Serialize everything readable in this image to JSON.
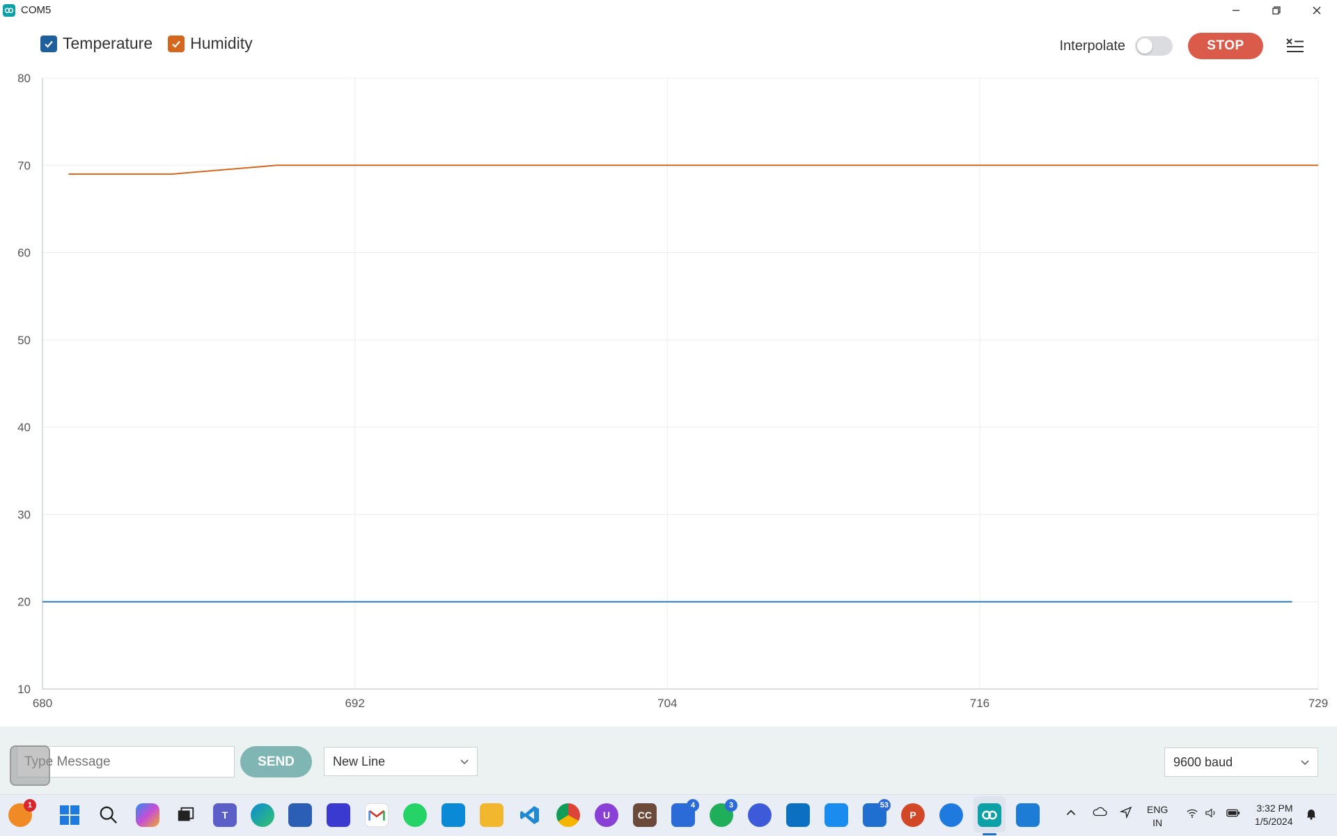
{
  "window": {
    "title": "COM5"
  },
  "header": {
    "legend": [
      {
        "label": "Temperature",
        "color": "#1f5f9e",
        "checked": true
      },
      {
        "label": "Humidity",
        "color": "#d4661e",
        "checked": true
      }
    ],
    "interpolate_label": "Interpolate",
    "interpolate_on": false,
    "stop_label": "STOP"
  },
  "chart_data": {
    "type": "line",
    "x_range": [
      680,
      729
    ],
    "xlim": [
      680,
      729
    ],
    "ylim": [
      10,
      80
    ],
    "xticks": [
      680,
      692,
      704,
      716,
      729
    ],
    "yticks": [
      10,
      20,
      30,
      40,
      50,
      60,
      70,
      80
    ],
    "grid": true,
    "series": [
      {
        "name": "Temperature",
        "color": "#2b7bb9",
        "x": [
          680,
          728
        ],
        "y": [
          20,
          20
        ]
      },
      {
        "name": "Humidity",
        "color": "#d4661e",
        "x": [
          681,
          685,
          689,
          729
        ],
        "y": [
          69,
          69,
          70,
          70
        ]
      }
    ]
  },
  "message_bar": {
    "placeholder": "Type Message",
    "send_label": "SEND",
    "line_ending": "New Line",
    "baud": "9600 baud"
  },
  "taskbar": {
    "badges": {
      "notifications": "1",
      "todo": "4",
      "whatsapp": "3",
      "mail": "53"
    },
    "language_line1": "ENG",
    "language_line2": "IN",
    "time": "3:32 PM",
    "date": "1/5/2024"
  }
}
